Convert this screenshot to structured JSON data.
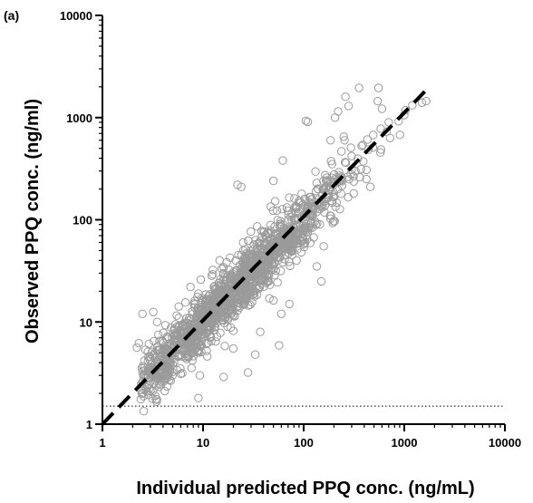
{
  "chart_data": {
    "type": "scatter",
    "panel_label": "(a)",
    "xlabel": "Individual predicted PPQ conc. (ng/mL)",
    "ylabel": "Observed PPQ conc. (ng/ml)",
    "x_scale": "log",
    "y_scale": "log",
    "xlim": [
      1,
      10000
    ],
    "ylim": [
      1,
      10000
    ],
    "x_ticks": [
      "1",
      "10",
      "100",
      "1000",
      "10000"
    ],
    "y_ticks": [
      "1",
      "10",
      "100",
      "1000",
      "10000"
    ],
    "grid": false,
    "identity_line": {
      "from": [
        1,
        1
      ],
      "to": [
        1600,
        1800
      ],
      "style": "dashed"
    },
    "lloq_line": {
      "y": 1.5,
      "x_range": [
        1,
        10000
      ],
      "style": "dotted"
    },
    "marker": {
      "shape": "open-circle",
      "color": "#9a9a9a"
    },
    "point_cloud": {
      "approx_count": 1500,
      "trend": "y ≈ x",
      "x_range": [
        2,
        1700
      ],
      "y_range": [
        1.8,
        2000
      ]
    },
    "points": [
      [
        2.2,
        5.6
      ],
      [
        2.3,
        6.2
      ],
      [
        2.5,
        12
      ],
      [
        3.2,
        12.5
      ],
      [
        3.5,
        10
      ],
      [
        3.6,
        7.5
      ],
      [
        4.3,
        5.5
      ],
      [
        4.4,
        3.5
      ],
      [
        5.2,
        6
      ],
      [
        6,
        3.1
      ],
      [
        6.8,
        7.3
      ],
      [
        7.5,
        22
      ],
      [
        7.4,
        5.7
      ],
      [
        9.0,
        1.8
      ],
      [
        9.3,
        3.0
      ],
      [
        9.5,
        26
      ],
      [
        11,
        4.6
      ],
      [
        16,
        2.9
      ],
      [
        20,
        5.5
      ],
      [
        22,
        220
      ],
      [
        24,
        210
      ],
      [
        25,
        60
      ],
      [
        28,
        3.2
      ],
      [
        33,
        4.8
      ],
      [
        37,
        8
      ],
      [
        50,
        240
      ],
      [
        57,
        5.9
      ],
      [
        60,
        12
      ],
      [
        62,
        380
      ],
      [
        72,
        15
      ],
      [
        75,
        52
      ],
      [
        85,
        40
      ],
      [
        95,
        48
      ],
      [
        105,
        930
      ],
      [
        110,
        910
      ],
      [
        135,
        35
      ],
      [
        150,
        25
      ],
      [
        158,
        55
      ],
      [
        185,
        600
      ],
      [
        205,
        1000
      ],
      [
        220,
        1150
      ],
      [
        250,
        650
      ],
      [
        255,
        600
      ],
      [
        260,
        1600
      ],
      [
        280,
        1300
      ],
      [
        300,
        420
      ],
      [
        300,
        310
      ],
      [
        355,
        1950
      ],
      [
        420,
        250
      ],
      [
        460,
        210
      ],
      [
        555,
        1950
      ],
      [
        545,
        1450
      ],
      [
        600,
        1220
      ],
      [
        700,
        900
      ],
      [
        880,
        920
      ],
      [
        1000,
        1060
      ],
      [
        1200,
        1320
      ],
      [
        1500,
        1400
      ],
      [
        1650,
        1450
      ]
    ]
  }
}
